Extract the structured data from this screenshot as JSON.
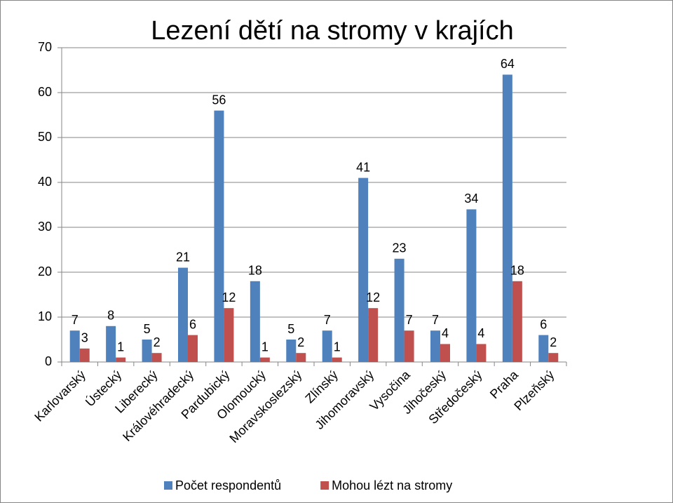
{
  "chart_data": {
    "type": "bar",
    "title": "Lezení dětí na stromy v krajích",
    "categories": [
      "Karlovarský",
      "Ústecký",
      "Liberecký",
      "Královéhradecký",
      "Pardubický",
      "Olomoucký",
      "Moravskoslezský",
      "Zlínský",
      "Jihomoravský",
      "Vysočina",
      "Jihočeský",
      "Středočeský",
      "Praha",
      "Plzeňský"
    ],
    "series": [
      {
        "name": "Počet respondentů",
        "color": "#4f81bd",
        "values": [
          7,
          8,
          5,
          21,
          56,
          18,
          5,
          7,
          41,
          23,
          7,
          34,
          64,
          6
        ]
      },
      {
        "name": "Mohou lézt na stromy",
        "color": "#c0504d",
        "values": [
          3,
          1,
          2,
          6,
          12,
          1,
          2,
          1,
          12,
          7,
          4,
          4,
          18,
          2
        ]
      }
    ],
    "ylim": [
      0,
      70
    ],
    "yticks": [
      0,
      10,
      20,
      30,
      40,
      50,
      60,
      70
    ],
    "grid": true,
    "legend": "bottom"
  }
}
